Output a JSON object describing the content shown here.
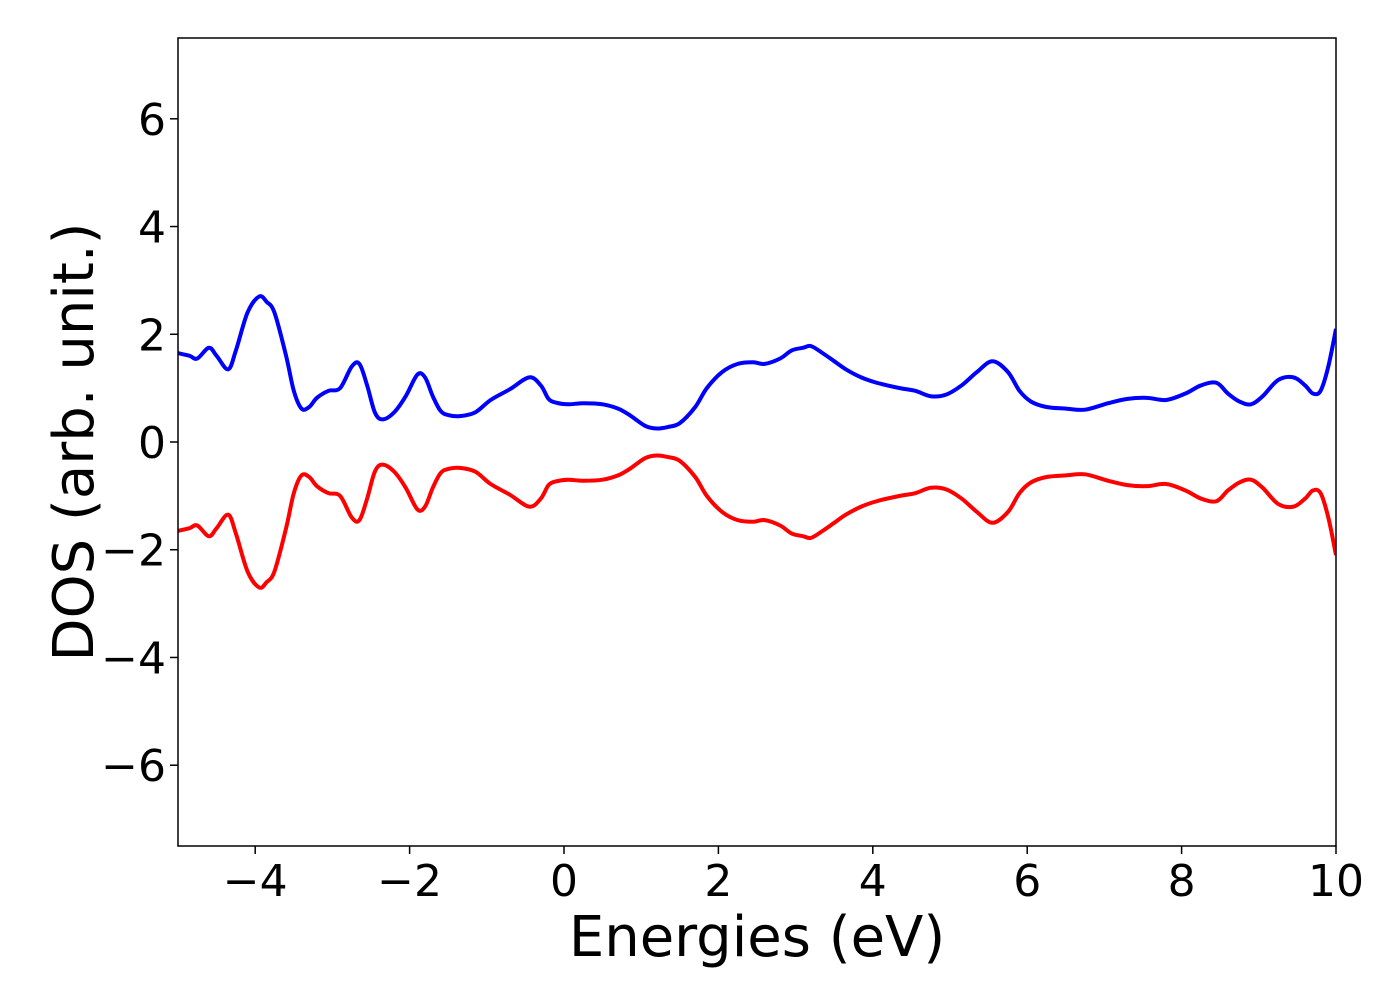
{
  "chart_data": {
    "type": "line",
    "title": "",
    "xlabel": "Energies (eV)",
    "ylabel": "DOS (arb. unit.)",
    "xlim": [
      -5,
      10
    ],
    "ylim": [
      -7.5,
      7.5
    ],
    "xticks": [
      -4,
      -2,
      0,
      2,
      4,
      6,
      8,
      10
    ],
    "yticks": [
      -6,
      -4,
      -2,
      0,
      2,
      4,
      6
    ],
    "xtick_labels": [
      "−4",
      "−2",
      "0",
      "2",
      "4",
      "6",
      "8",
      "10"
    ],
    "ytick_labels": [
      "−6",
      "−4",
      "−2",
      "0",
      "2",
      "4",
      "6"
    ],
    "grid": false,
    "legend": "none",
    "series": [
      {
        "color": "#0000ff",
        "x": [
          -5.0,
          -4.85,
          -4.75,
          -4.6,
          -4.5,
          -4.35,
          -4.25,
          -4.1,
          -3.95,
          -3.85,
          -3.75,
          -3.6,
          -3.5,
          -3.4,
          -3.3,
          -3.2,
          -3.05,
          -2.9,
          -2.75,
          -2.65,
          -2.55,
          -2.45,
          -2.35,
          -2.2,
          -2.05,
          -1.9,
          -1.8,
          -1.7,
          -1.6,
          -1.5,
          -1.35,
          -1.15,
          -0.95,
          -0.7,
          -0.45,
          -0.3,
          -0.2,
          -0.1,
          0.05,
          0.25,
          0.5,
          0.7,
          0.85,
          1.05,
          1.2,
          1.35,
          1.5,
          1.7,
          1.85,
          2.05,
          2.25,
          2.45,
          2.6,
          2.8,
          2.95,
          3.1,
          3.2,
          3.35,
          3.5,
          3.65,
          3.85,
          4.05,
          4.35,
          4.55,
          4.75,
          4.95,
          5.15,
          5.35,
          5.55,
          5.75,
          5.9,
          6.05,
          6.25,
          6.5,
          6.75,
          7.05,
          7.3,
          7.55,
          7.8,
          8.05,
          8.25,
          8.45,
          8.6,
          8.75,
          8.9,
          9.05,
          9.25,
          9.45,
          9.6,
          9.7,
          9.8,
          9.9,
          10.0
        ],
        "y": [
          1.65,
          1.6,
          1.55,
          1.75,
          1.6,
          1.35,
          1.7,
          2.4,
          2.7,
          2.6,
          2.4,
          1.6,
          0.95,
          0.62,
          0.65,
          0.82,
          0.95,
          1.0,
          1.4,
          1.45,
          1.05,
          0.55,
          0.42,
          0.55,
          0.85,
          1.25,
          1.2,
          0.85,
          0.58,
          0.5,
          0.48,
          0.55,
          0.78,
          0.98,
          1.2,
          1.05,
          0.8,
          0.73,
          0.7,
          0.72,
          0.7,
          0.62,
          0.5,
          0.3,
          0.25,
          0.28,
          0.35,
          0.65,
          1.0,
          1.3,
          1.45,
          1.48,
          1.45,
          1.55,
          1.7,
          1.75,
          1.78,
          1.65,
          1.5,
          1.35,
          1.2,
          1.1,
          1.0,
          0.95,
          0.85,
          0.88,
          1.05,
          1.3,
          1.5,
          1.3,
          0.95,
          0.75,
          0.65,
          0.62,
          0.6,
          0.72,
          0.8,
          0.82,
          0.78,
          0.9,
          1.05,
          1.1,
          0.9,
          0.75,
          0.7,
          0.85,
          1.15,
          1.2,
          1.05,
          0.9,
          0.95,
          1.4,
          2.1
        ]
      },
      {
        "color": "#ff0000",
        "x": [
          -5.0,
          -4.85,
          -4.75,
          -4.6,
          -4.5,
          -4.35,
          -4.25,
          -4.1,
          -3.95,
          -3.85,
          -3.75,
          -3.6,
          -3.5,
          -3.4,
          -3.3,
          -3.2,
          -3.05,
          -2.9,
          -2.75,
          -2.65,
          -2.55,
          -2.45,
          -2.35,
          -2.2,
          -2.05,
          -1.9,
          -1.8,
          -1.7,
          -1.6,
          -1.5,
          -1.35,
          -1.15,
          -0.95,
          -0.7,
          -0.45,
          -0.3,
          -0.2,
          -0.1,
          0.05,
          0.25,
          0.5,
          0.7,
          0.85,
          1.05,
          1.2,
          1.35,
          1.5,
          1.7,
          1.85,
          2.05,
          2.25,
          2.45,
          2.6,
          2.8,
          2.95,
          3.1,
          3.2,
          3.35,
          3.5,
          3.65,
          3.85,
          4.05,
          4.35,
          4.55,
          4.75,
          4.95,
          5.15,
          5.35,
          5.55,
          5.75,
          5.9,
          6.05,
          6.25,
          6.5,
          6.75,
          7.05,
          7.3,
          7.55,
          7.8,
          8.05,
          8.25,
          8.45,
          8.6,
          8.75,
          8.9,
          9.05,
          9.25,
          9.45,
          9.6,
          9.7,
          9.8,
          9.9,
          10.0
        ],
        "y": [
          -1.65,
          -1.6,
          -1.55,
          -1.75,
          -1.6,
          -1.35,
          -1.7,
          -2.4,
          -2.7,
          -2.6,
          -2.4,
          -1.6,
          -0.95,
          -0.62,
          -0.65,
          -0.82,
          -0.95,
          -1.0,
          -1.4,
          -1.45,
          -1.05,
          -0.55,
          -0.42,
          -0.55,
          -0.85,
          -1.25,
          -1.2,
          -0.85,
          -0.58,
          -0.5,
          -0.48,
          -0.55,
          -0.78,
          -0.98,
          -1.2,
          -1.05,
          -0.8,
          -0.73,
          -0.7,
          -0.72,
          -0.7,
          -0.62,
          -0.5,
          -0.3,
          -0.25,
          -0.28,
          -0.35,
          -0.65,
          -1.0,
          -1.3,
          -1.45,
          -1.48,
          -1.45,
          -1.55,
          -1.7,
          -1.75,
          -1.78,
          -1.65,
          -1.5,
          -1.35,
          -1.2,
          -1.1,
          -1.0,
          -0.95,
          -0.85,
          -0.88,
          -1.05,
          -1.3,
          -1.5,
          -1.3,
          -0.95,
          -0.75,
          -0.65,
          -0.62,
          -0.6,
          -0.72,
          -0.8,
          -0.82,
          -0.78,
          -0.9,
          -1.05,
          -1.1,
          -0.9,
          -0.75,
          -0.7,
          -0.85,
          -1.15,
          -1.2,
          -1.05,
          -0.9,
          -0.95,
          -1.4,
          -2.1
        ]
      }
    ]
  }
}
